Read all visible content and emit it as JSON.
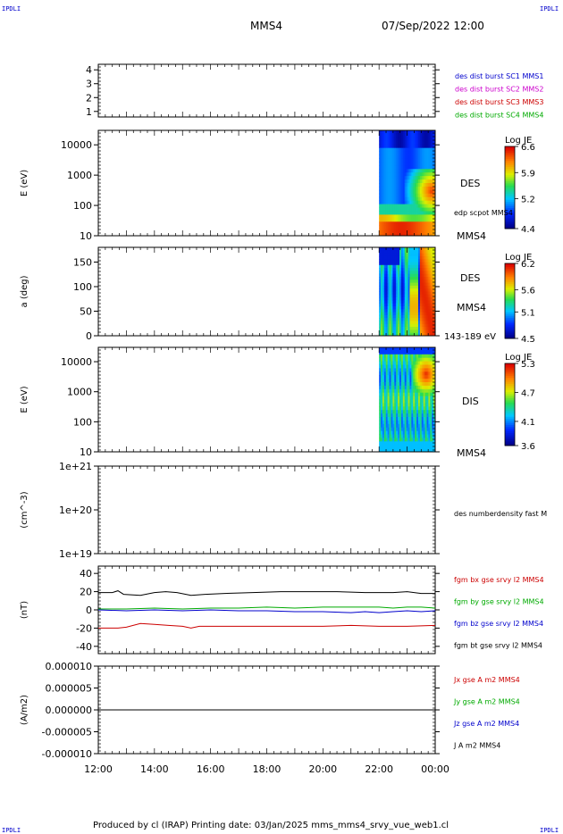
{
  "header": {
    "spacecraft": "MMS4",
    "datetime": "07/Sep/2022 12:00",
    "corner_tl": "IPDLI",
    "corner_tr": "IPDLI",
    "corner_bl": "IPDLI",
    "corner_br": "IPDLI"
  },
  "footer": {
    "text": "Produced by cl (IRAP)   Printing date: 03/Jan/2025   mms_mms4_srvy_vue_web1.cl"
  },
  "chart_data": {
    "type": "multi-panel time series",
    "x_ticks": [
      "12:00",
      "14:00",
      "16:00",
      "18:00",
      "20:00",
      "22:00",
      "00:00"
    ],
    "panels": [
      {
        "id": "burst",
        "type": "line",
        "yticks": [
          "4",
          "3",
          "2",
          "1"
        ],
        "ylim": [
          0.6,
          4.4
        ],
        "legend": [
          {
            "text": "des dist burst SC1 MMS1",
            "color": "#0000cc"
          },
          {
            "text": "des dist burst SC2 MMS2",
            "color": "#cc00cc"
          },
          {
            "text": "des dist burst SC3 MMS3",
            "color": "#cc0000"
          },
          {
            "text": "des dist burst SC4 MMS4",
            "color": "#00aa00"
          }
        ]
      },
      {
        "id": "des-energy",
        "type": "heatmap",
        "ylabel": "E (eV)",
        "scale": "log",
        "ylim": [
          10,
          30000
        ],
        "yticks": [
          "10000",
          "1000",
          "100",
          "10"
        ],
        "data_start": "22:00",
        "labels": [
          "DES",
          "edp scpot MMS4",
          "MMS4"
        ],
        "colorbar": {
          "title": "Log JE",
          "ticks": [
            "6.6",
            "5.9",
            "5.2",
            "4.4"
          ],
          "min": 4.4,
          "max": 6.6
        }
      },
      {
        "id": "des-pitch",
        "type": "heatmap",
        "ylabel": "a (deg)",
        "ylim": [
          0,
          180
        ],
        "yticks": [
          "150",
          "100",
          "50",
          "0"
        ],
        "data_start": "22:00",
        "labels": [
          "DES",
          "MMS4",
          "143-189 eV"
        ],
        "colorbar": {
          "title": "Log JE",
          "ticks": [
            "6.2",
            "5.6",
            "5.1",
            "4.5"
          ],
          "min": 4.5,
          "max": 6.2
        }
      },
      {
        "id": "dis-energy",
        "type": "heatmap",
        "ylabel": "E (eV)",
        "scale": "log",
        "ylim": [
          10,
          30000
        ],
        "yticks": [
          "10000",
          "1000",
          "100",
          "10"
        ],
        "data_start": "22:00",
        "labels": [
          "DIS",
          "MMS4"
        ],
        "colorbar": {
          "title": "Log JE",
          "ticks": [
            "5.3",
            "4.7",
            "4.1",
            "3.6"
          ],
          "min": 3.6,
          "max": 5.3
        }
      },
      {
        "id": "density",
        "type": "line",
        "ylabel": "(cm^-3)",
        "scale": "log",
        "yticks": [
          "1e+21",
          "1e+20",
          "1e+19"
        ],
        "legend": [
          {
            "text": "des numberdensity fast M",
            "color": "#000000"
          }
        ]
      },
      {
        "id": "fgm",
        "type": "line",
        "ylabel": "(nT)",
        "ylim": [
          -48,
          48
        ],
        "yticks": [
          "40",
          "20",
          "0",
          "-20",
          "-40"
        ],
        "legend": [
          {
            "text": "fgm bx gse srvy l2 MMS4",
            "color": "#cc0000"
          },
          {
            "text": "fgm by gse srvy l2 MMS4",
            "color": "#00aa00"
          },
          {
            "text": "fgm bz gse srvy l2 MMS4",
            "color": "#0000cc"
          },
          {
            "text": "fgm bt gse srvy l2 MMS4",
            "color": "#000000"
          }
        ],
        "series": [
          {
            "name": "fgm bt gse srvy l2 MMS4",
            "color": "#000000",
            "x": [
              0,
              0.5,
              0.7,
              0.9,
              1.5,
              2.0,
              2.4,
              2.8,
              3.3,
              3.8,
              4.5,
              5.5,
              6.5,
              7.5,
              8.5,
              9.5,
              10.5,
              11.0,
              11.5,
              12.0
            ],
            "y": [
              19,
              19,
              21,
              17,
              16,
              19,
              20,
              19,
              16,
              17,
              18,
              19,
              20,
              20,
              20,
              19,
              19,
              20,
              18,
              18
            ]
          },
          {
            "name": "fgm bx gse srvy l2 MMS4",
            "color": "#cc0000",
            "x": [
              0,
              0.5,
              0.7,
              1.0,
              1.5,
              2.0,
              2.5,
              3.0,
              3.3,
              3.6,
              4.0,
              5.0,
              6.0,
              7.0,
              8.0,
              9.0,
              10.0,
              11.0,
              12.0
            ],
            "y": [
              -20,
              -20,
              -20,
              -19,
              -15,
              -16,
              -17,
              -18,
              -20,
              -18,
              -18,
              -18,
              -18,
              -18,
              -18,
              -17,
              -18,
              -18,
              -17
            ]
          },
          {
            "name": "fgm by gse srvy l2 MMS4",
            "color": "#00aa00",
            "x": [
              0,
              1.0,
              2.0,
              3.0,
              4.0,
              5.0,
              6.0,
              7.0,
              8.0,
              9.0,
              10.0,
              10.5,
              11.0,
              11.5,
              12.0
            ],
            "y": [
              1,
              1,
              2,
              1,
              2,
              2,
              3,
              2,
              3,
              3,
              3,
              2,
              3,
              3,
              2
            ]
          },
          {
            "name": "fgm bz gse srvy l2 MMS4",
            "color": "#0000cc",
            "x": [
              0,
              1.0,
              2.0,
              3.0,
              4.0,
              5.0,
              6.0,
              7.0,
              8.0,
              9.0,
              9.5,
              10.0,
              10.5,
              11.0,
              11.5,
              12.0
            ],
            "y": [
              0,
              -1,
              0,
              -1,
              0,
              -1,
              -1,
              -2,
              -2,
              -3,
              -2,
              -3,
              -2,
              -1,
              -2,
              -1
            ]
          }
        ]
      },
      {
        "id": "current",
        "type": "line",
        "ylabel": "(A/m2)",
        "ylim": [
          -1e-05,
          1e-05
        ],
        "yticks": [
          "0.000010",
          "0.000005",
          "0.000000",
          "-0.000005",
          "-0.000010"
        ],
        "legend": [
          {
            "text": "Jx gse A m2 MMS4",
            "color": "#cc0000"
          },
          {
            "text": "Jy gse A m2 MMS4",
            "color": "#00aa00"
          },
          {
            "text": "Jz gse A m2 MMS4",
            "color": "#0000cc"
          },
          {
            "text": "J A m2 MMS4",
            "color": "#000000"
          }
        ],
        "series": [
          {
            "name": "J A m2 MMS4",
            "color": "#000000",
            "x": [
              0,
              12
            ],
            "y": [
              0,
              0
            ]
          }
        ]
      }
    ]
  }
}
